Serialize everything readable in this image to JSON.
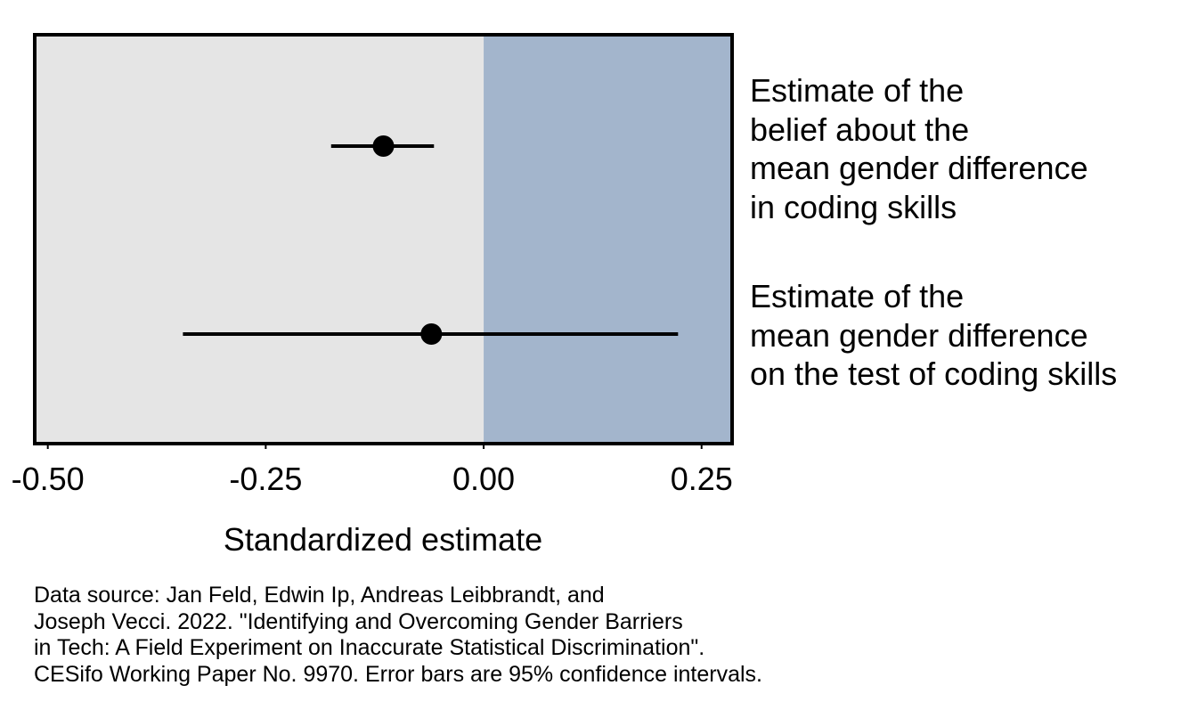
{
  "chart_data": {
    "type": "forest",
    "xlabel": "Standardized estimate",
    "xlim": [
      -0.515,
      0.285
    ],
    "xticks": [
      -0.5,
      -0.25,
      0,
      0.25
    ],
    "xtick_labels": [
      "-0.50",
      "-0.25",
      "0.00",
      "0.25"
    ],
    "grid": false,
    "shading": {
      "negative_region_color": "#e5e5e5",
      "positive_region_color": "#a3b5cc"
    },
    "series": [
      {
        "label_lines": [
          "Estimate of the",
          "belief about the",
          "mean gender difference",
          "in coding skills"
        ],
        "estimate": -0.115,
        "ci_low": -0.175,
        "ci_high": -0.057
      },
      {
        "label_lines": [
          "Estimate of the",
          "mean gender difference",
          "on the test of coding skills"
        ],
        "estimate": -0.06,
        "ci_low": -0.345,
        "ci_high": 0.223
      }
    ],
    "caption_lines": [
      "Data source: Jan Feld, Edwin Ip, Andreas Leibbrandt, and",
      "Joseph Vecci. 2022. \"Identifying and Overcoming Gender Barriers",
      "in Tech: A Field Experiment on Inaccurate Statistical Discrimination\".",
      "CESifo Working Paper No. 9970. Error bars are 95% confidence intervals."
    ]
  }
}
